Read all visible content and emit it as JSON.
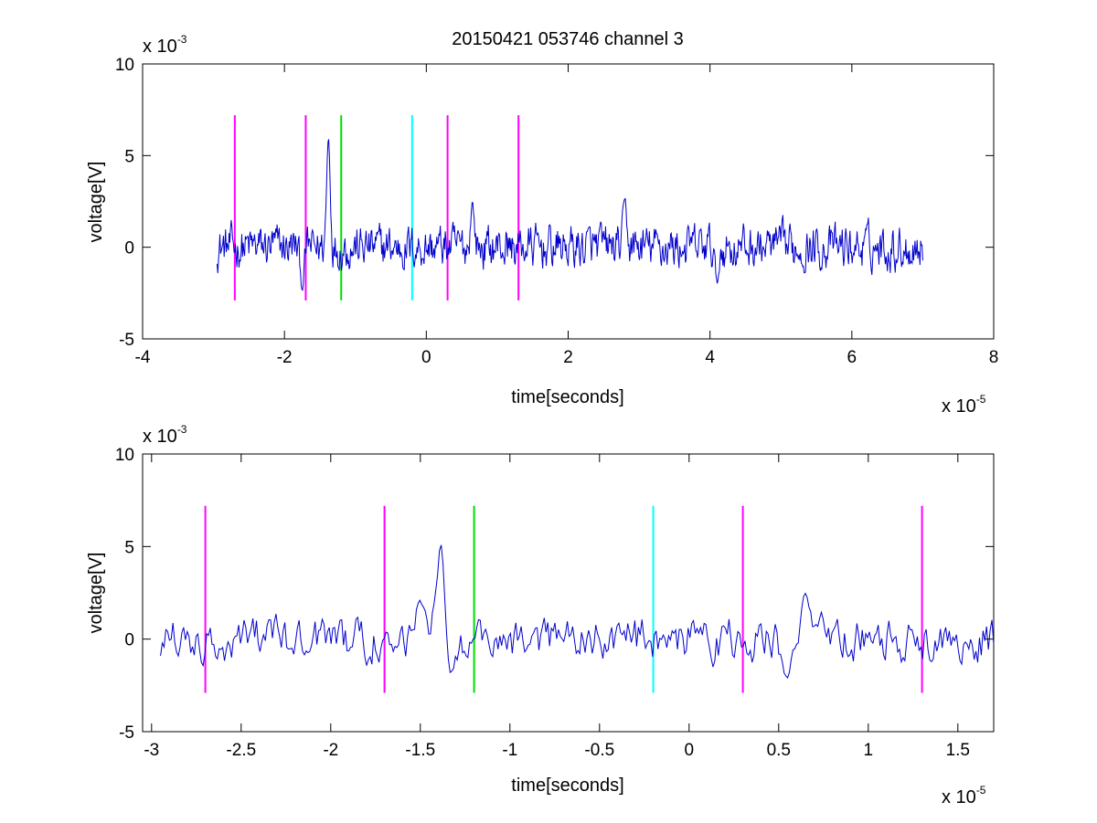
{
  "figure_title": "20150421 053746 channel 3",
  "chart_data": [
    {
      "type": "line",
      "title": "20150421 053746 channel 3",
      "xlabel": "time[seconds]",
      "ylabel": "voltage[V]",
      "x_multiplier_label": "x 10",
      "x_multiplier_exp": "-5",
      "y_multiplier_label": "x 10",
      "y_multiplier_exp": "-3",
      "xlim": [
        -4,
        8
      ],
      "ylim": [
        -5,
        10
      ],
      "x_ticks": [
        -4,
        -2,
        0,
        2,
        4,
        6,
        8
      ],
      "x_tick_labels": [
        "-4",
        "-2",
        "0",
        "2",
        "4",
        "6",
        "8"
      ],
      "y_ticks": [
        -5,
        0,
        5,
        10
      ],
      "y_tick_labels": [
        "-5",
        "0",
        "5",
        "10"
      ],
      "grid": false,
      "series": [
        {
          "color": "#0000cc",
          "x_start": -2.95,
          "x_end": 7.0,
          "samples": 1000,
          "mean": 0.0,
          "noise_amplitude": 0.9,
          "peaks": [
            {
              "x": -1.38,
              "y": 6.6
            },
            {
              "x": 2.8,
              "y": 2.9
            },
            {
              "x": 0.65,
              "y": 2.7
            },
            {
              "x": -1.75,
              "y": -2.5
            },
            {
              "x": 4.1,
              "y": -2.2
            }
          ]
        }
      ],
      "vertical_markers": [
        {
          "x": -2.7,
          "y_from": -2.9,
          "y_to": 7.2,
          "color": "#ff00ff"
        },
        {
          "x": -1.7,
          "y_from": -2.9,
          "y_to": 7.2,
          "color": "#ff00ff"
        },
        {
          "x": -1.2,
          "y_from": -2.9,
          "y_to": 7.2,
          "color": "#00dd00"
        },
        {
          "x": -0.2,
          "y_from": -2.9,
          "y_to": 7.2,
          "color": "#00ffff"
        },
        {
          "x": 0.3,
          "y_from": -2.9,
          "y_to": 7.2,
          "color": "#ff00ff"
        },
        {
          "x": 1.3,
          "y_from": -2.9,
          "y_to": 7.2,
          "color": "#ff00ff"
        }
      ]
    },
    {
      "type": "line",
      "title": "",
      "xlabel": "time[seconds]",
      "ylabel": "voltage[V]",
      "x_multiplier_label": "x 10",
      "x_multiplier_exp": "-5",
      "y_multiplier_label": "x 10",
      "y_multiplier_exp": "-3",
      "xlim": [
        -3.05,
        1.7
      ],
      "ylim": [
        -5,
        10
      ],
      "x_ticks": [
        -3,
        -2.5,
        -2,
        -1.5,
        -1,
        -0.5,
        0,
        0.5,
        1,
        1.5
      ],
      "x_tick_labels": [
        "-3",
        "-2.5",
        "-2",
        "-1.5",
        "-1",
        "-0.5",
        "0",
        "0.5",
        "1",
        "1.5"
      ],
      "y_ticks": [
        -5,
        0,
        5,
        10
      ],
      "y_tick_labels": [
        "-5",
        "0",
        "5",
        "10"
      ],
      "grid": false,
      "series": [
        {
          "color": "#0000cc",
          "x_start": -2.95,
          "x_end": 1.7,
          "samples": 470,
          "mean": 0.0,
          "noise_amplitude": 0.9,
          "peaks": [
            {
              "x": -1.38,
              "y": 6.6
            },
            {
              "x": 0.65,
              "y": 2.7
            },
            {
              "x": -1.5,
              "y": 2.2
            },
            {
              "x": -1.33,
              "y": -2.1
            },
            {
              "x": 0.55,
              "y": -2.3
            }
          ]
        }
      ],
      "vertical_markers": [
        {
          "x": -2.7,
          "y_from": -2.9,
          "y_to": 7.2,
          "color": "#ff00ff"
        },
        {
          "x": -1.7,
          "y_from": -2.9,
          "y_to": 7.2,
          "color": "#ff00ff"
        },
        {
          "x": -1.2,
          "y_from": -2.9,
          "y_to": 7.2,
          "color": "#00dd00"
        },
        {
          "x": -0.2,
          "y_from": -2.9,
          "y_to": 7.2,
          "color": "#00ffff"
        },
        {
          "x": 0.3,
          "y_from": -2.9,
          "y_to": 7.2,
          "color": "#ff00ff"
        },
        {
          "x": 1.3,
          "y_from": -2.9,
          "y_to": 7.2,
          "color": "#ff00ff"
        }
      ]
    }
  ]
}
